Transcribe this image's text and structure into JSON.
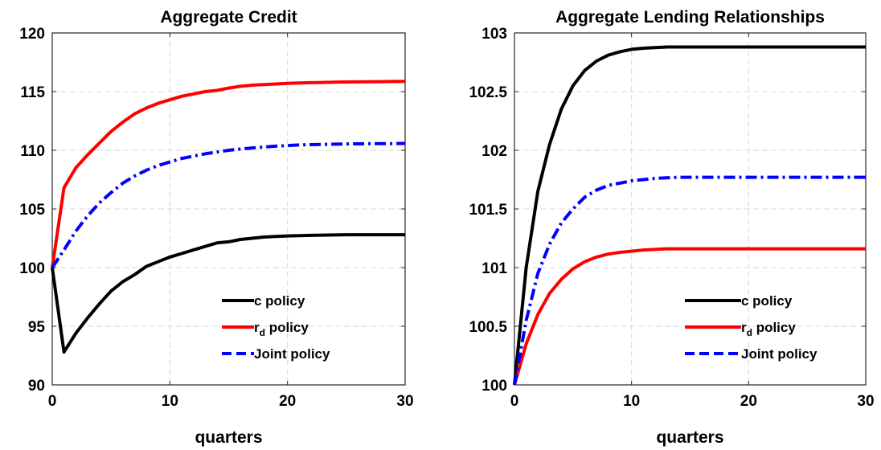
{
  "chart_data": [
    {
      "type": "line",
      "title": "Aggregate Credit",
      "xlabel": "quarters",
      "ylabel": "",
      "xlim": [
        0,
        30
      ],
      "ylim": [
        90,
        120
      ],
      "xticks": [
        0,
        10,
        20,
        30
      ],
      "yticks": [
        90,
        95,
        100,
        105,
        110,
        115,
        120
      ],
      "grid": true,
      "legend_position": "bottom-right",
      "x": [
        0,
        1,
        2,
        3,
        4,
        5,
        6,
        7,
        8,
        9,
        10,
        11,
        12,
        13,
        14,
        15,
        16,
        17,
        18,
        19,
        20,
        21,
        22,
        23,
        24,
        25,
        26,
        27,
        28,
        29,
        30
      ],
      "series": [
        {
          "name": "c policy",
          "color": "#000000",
          "style": "solid",
          "values": [
            100,
            92.8,
            94.4,
            95.7,
            96.9,
            98.0,
            98.8,
            99.4,
            100.1,
            100.5,
            100.9,
            101.2,
            101.5,
            101.8,
            102.1,
            102.2,
            102.4,
            102.5,
            102.6,
            102.65,
            102.7,
            102.72,
            102.75,
            102.77,
            102.78,
            102.8,
            102.8,
            102.8,
            102.8,
            102.8,
            102.8
          ]
        },
        {
          "name": "r",
          "name_subscript": "d",
          "name_suffix": " policy",
          "color": "#ff0000",
          "style": "solid",
          "values": [
            100,
            106.8,
            108.5,
            109.6,
            110.6,
            111.6,
            112.4,
            113.1,
            113.6,
            114.0,
            114.3,
            114.6,
            114.8,
            115.0,
            115.1,
            115.3,
            115.45,
            115.55,
            115.6,
            115.65,
            115.7,
            115.73,
            115.76,
            115.78,
            115.8,
            115.82,
            115.83,
            115.84,
            115.85,
            115.86,
            115.87
          ]
        },
        {
          "name": "Joint policy",
          "color": "#0000ff",
          "style": "dashdot",
          "values": [
            100,
            101.5,
            103.1,
            104.4,
            105.5,
            106.4,
            107.2,
            107.8,
            108.3,
            108.7,
            109.0,
            109.3,
            109.5,
            109.7,
            109.85,
            110.0,
            110.1,
            110.2,
            110.28,
            110.35,
            110.4,
            110.45,
            110.48,
            110.5,
            110.52,
            110.54,
            110.55,
            110.56,
            110.57,
            110.57,
            110.58
          ]
        }
      ]
    },
    {
      "type": "line",
      "title": "Aggregate Lending Relationships",
      "xlabel": "quarters",
      "ylabel": "",
      "xlim": [
        0,
        30
      ],
      "ylim": [
        100,
        103
      ],
      "xticks": [
        0,
        10,
        20,
        30
      ],
      "yticks": [
        100,
        100.5,
        101,
        101.5,
        102,
        102.5,
        103
      ],
      "grid": true,
      "legend_position": "bottom-right",
      "x": [
        0,
        1,
        2,
        3,
        4,
        5,
        6,
        7,
        8,
        9,
        10,
        11,
        12,
        13,
        14,
        15,
        16,
        17,
        18,
        19,
        20,
        21,
        22,
        23,
        24,
        25,
        26,
        27,
        28,
        29,
        30
      ],
      "series": [
        {
          "name": "c policy",
          "color": "#000000",
          "style": "solid",
          "values": [
            100,
            101.0,
            101.65,
            102.05,
            102.35,
            102.55,
            102.68,
            102.76,
            102.81,
            102.84,
            102.86,
            102.87,
            102.875,
            102.88,
            102.88,
            102.88,
            102.88,
            102.88,
            102.88,
            102.88,
            102.88,
            102.88,
            102.88,
            102.88,
            102.88,
            102.88,
            102.88,
            102.88,
            102.88,
            102.88,
            102.88
          ]
        },
        {
          "name": "r",
          "name_subscript": "d",
          "name_suffix": " policy",
          "color": "#ff0000",
          "style": "solid",
          "values": [
            100,
            100.35,
            100.6,
            100.78,
            100.9,
            100.99,
            101.05,
            101.09,
            101.115,
            101.13,
            101.14,
            101.15,
            101.155,
            101.16,
            101.16,
            101.16,
            101.16,
            101.16,
            101.16,
            101.16,
            101.16,
            101.16,
            101.16,
            101.16,
            101.16,
            101.16,
            101.16,
            101.16,
            101.16,
            101.16,
            101.16
          ]
        },
        {
          "name": "Joint policy",
          "color": "#0000ff",
          "style": "dashdot",
          "values": [
            100,
            100.55,
            100.95,
            101.2,
            101.38,
            101.5,
            101.6,
            101.66,
            101.7,
            101.72,
            101.74,
            101.75,
            101.76,
            101.765,
            101.77,
            101.77,
            101.77,
            101.77,
            101.77,
            101.77,
            101.77,
            101.77,
            101.77,
            101.77,
            101.77,
            101.77,
            101.77,
            101.77,
            101.77,
            101.77,
            101.77
          ]
        }
      ]
    }
  ]
}
